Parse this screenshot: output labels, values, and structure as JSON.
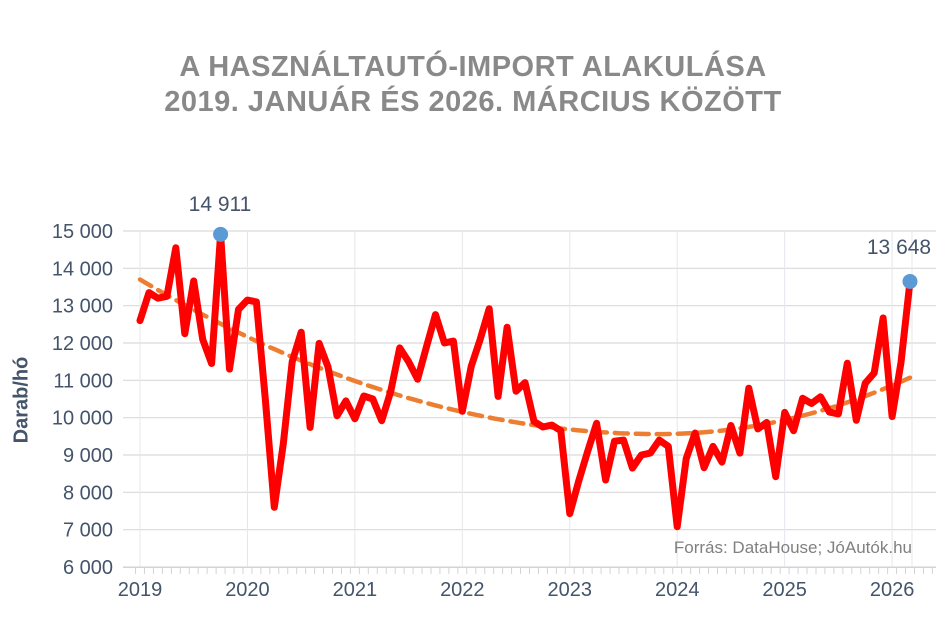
{
  "title": {
    "line1": "A HASZNÁLTAUTÓ-IMPORT ALAKULÁSA",
    "line2": "2019. JANUÁR ÉS 2026. MÁRCIUS KÖZÖTT"
  },
  "source": "Forrás: DataHouse; JóAutók.hu",
  "y_axis": {
    "label": "Darab/hó",
    "tick_values": [
      6000,
      7000,
      8000,
      9000,
      10000,
      11000,
      12000,
      13000,
      14000,
      15000
    ],
    "tick_labels": [
      "6 000",
      "7 000",
      "8 000",
      "9 000",
      "10 000",
      "11 000",
      "12 000",
      "13 000",
      "14 000",
      "15 000"
    ]
  },
  "x_axis": {
    "year_labels": [
      "2019",
      "2020",
      "2021",
      "2022",
      "2023",
      "2024",
      "2025",
      "2026"
    ]
  },
  "colors": {
    "line": "#FF0000",
    "trend": "#ED7D31",
    "marker": "#5B9BD5",
    "axis_text": "#44546A",
    "title_text": "#898989",
    "gridline": "#D9D9D9",
    "vertical_gridline": "#E3E7EB",
    "tick": "#CFD4DA"
  },
  "chart_data": {
    "type": "line",
    "title": "A használtautó-import alakulása 2019. január és 2026. március között",
    "ylabel": "Darab/hó",
    "ylim": [
      6000,
      15000
    ],
    "grid": "on",
    "x_start": "2019-01",
    "x_end": "2026-03",
    "x_interval": "month",
    "values": [
      12600,
      13350,
      13200,
      13250,
      14550,
      12250,
      13660,
      12100,
      11450,
      14911,
      11300,
      12900,
      13150,
      13100,
      10500,
      7600,
      9300,
      11500,
      12290,
      9740,
      11990,
      11360,
      10050,
      10450,
      9970,
      10580,
      10500,
      9920,
      10700,
      11870,
      11500,
      11030,
      11900,
      12760,
      12000,
      12050,
      10170,
      11380,
      12100,
      12920,
      10570,
      12420,
      10710,
      10940,
      9900,
      9750,
      9800,
      9650,
      7430,
      8300,
      9100,
      9850,
      8330,
      9370,
      9400,
      8650,
      9000,
      9050,
      9400,
      9230,
      7080,
      8900,
      9590,
      8660,
      9230,
      8810,
      9790,
      9050,
      10790,
      9700,
      9870,
      8420,
      10140,
      9650,
      10520,
      10380,
      10560,
      10150,
      10100,
      11460,
      9930,
      10920,
      11200,
      12670,
      10030,
      11480,
      13648
    ],
    "trendline": {
      "shape": "polynomial",
      "style": "dashed",
      "start_value": 13700,
      "min_value": 9560,
      "min_month_index": 58,
      "end_value": 11070
    },
    "annotations": [
      {
        "label": "14 911",
        "month": "2019-10",
        "month_index": 9,
        "value": 14911
      },
      {
        "label": "13 648",
        "month": "2026-03",
        "month_index": 86,
        "value": 13648
      }
    ]
  }
}
